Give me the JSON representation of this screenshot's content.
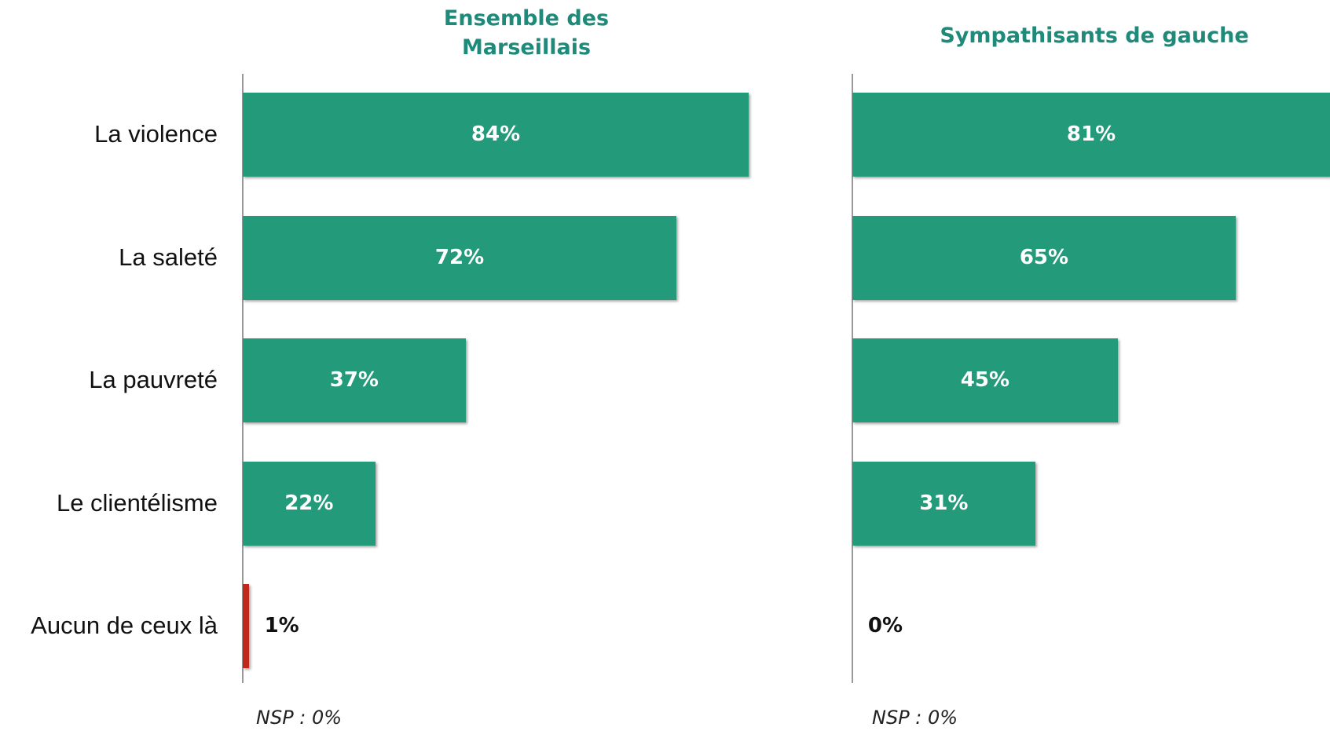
{
  "chart_data": [
    {
      "type": "bar",
      "title": "Ensemble des Marseillais",
      "categories": [
        "La violence",
        "La saleté",
        "La pauvreté",
        "Le clientélisme",
        "Aucun de ceux là"
      ],
      "values": [
        84,
        72,
        37,
        22,
        1
      ],
      "value_labels": [
        "84%",
        "72%",
        "37%",
        "22%",
        "1%"
      ],
      "colors": [
        "#239a7a",
        "#239a7a",
        "#239a7a",
        "#239a7a",
        "#c0281c"
      ],
      "xlim": [
        0,
        84
      ],
      "annotation": "NSP : 0%"
    },
    {
      "type": "bar",
      "title": "Sympathisants de gauche",
      "values": [
        81,
        65,
        45,
        31,
        0
      ],
      "value_labels": [
        "81%",
        "65%",
        "45%",
        "31%",
        "0%"
      ],
      "colors": [
        "#239a7a",
        "#239a7a",
        "#239a7a",
        "#239a7a",
        "#c0281c"
      ],
      "xlim": [
        0,
        81
      ],
      "annotation": "NSP : 0%"
    }
  ]
}
